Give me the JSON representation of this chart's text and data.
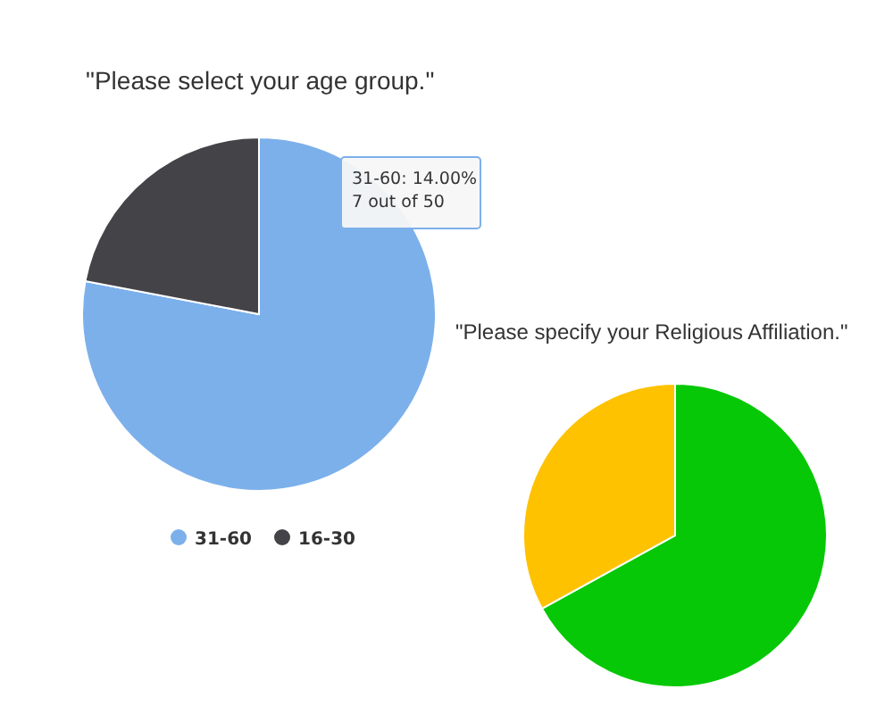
{
  "chart_data": [
    {
      "type": "pie",
      "title": "\"Please select your age group.\"",
      "categories": [
        "31-60",
        "16-30"
      ],
      "values": [
        78,
        22
      ],
      "colors": [
        "#7cb0eb",
        "#434348"
      ],
      "legend": "bottom",
      "annotations": [
        "31-60: 14.00%",
        "7 out of 50"
      ]
    },
    {
      "type": "pie",
      "title": "\"Please specify your Religious Affiliation.\"",
      "categories": [
        null,
        null
      ],
      "values": [
        67,
        33
      ],
      "colors": [
        "#06c806",
        "#fec200"
      ]
    }
  ]
}
